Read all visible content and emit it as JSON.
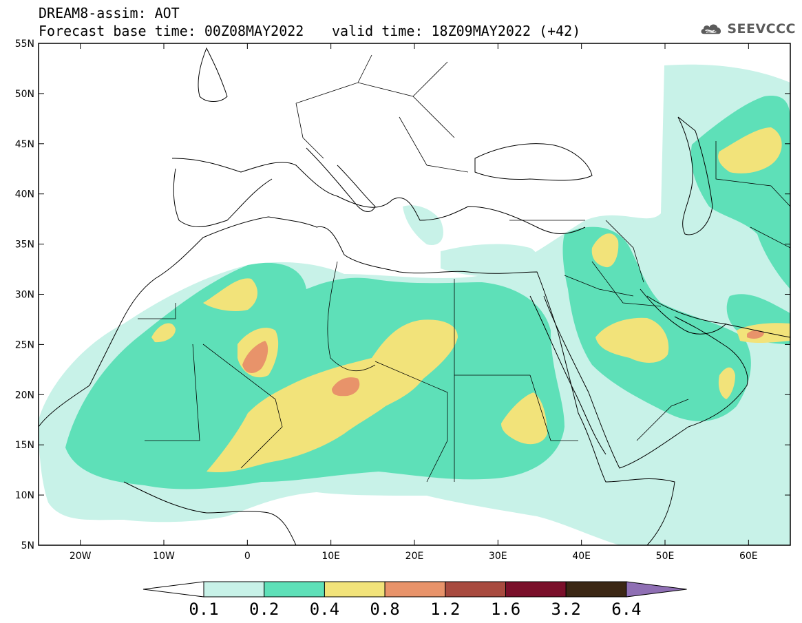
{
  "header": {
    "line1": "DREAM8-assim: AOT",
    "line2": "Forecast base time: 00Z08MAY2022",
    "valid": "valid time: 18Z09MAY2022 (+42)"
  },
  "logo": {
    "icon": "cloud-icon",
    "text": "SEEVCCC"
  },
  "axes": {
    "lat_labels": [
      "55N",
      "50N",
      "45N",
      "40N",
      "35N",
      "30N",
      "25N",
      "20N",
      "15N",
      "10N",
      "5N"
    ],
    "lat_values": [
      55,
      50,
      45,
      40,
      35,
      30,
      25,
      20,
      15,
      10,
      5
    ],
    "lon_labels": [
      "20W",
      "10W",
      "0",
      "10E",
      "20E",
      "30E",
      "40E",
      "50E",
      "60E"
    ],
    "lon_values": [
      -20,
      -10,
      0,
      10,
      20,
      30,
      40,
      50,
      60
    ],
    "lon_range": [
      -25,
      65
    ],
    "lat_range": [
      5,
      55
    ]
  },
  "legend": {
    "bounds": [
      "0.1",
      "0.2",
      "0.4",
      "0.8",
      "1.2",
      "1.6",
      "3.2",
      "6.4"
    ],
    "colors": [
      "#c8f2e8",
      "#5ee0b8",
      "#f2e37a",
      "#e8936a",
      "#a84a3f",
      "#7a0f2a",
      "#3b2714",
      "#8f6fb4"
    ]
  }
}
